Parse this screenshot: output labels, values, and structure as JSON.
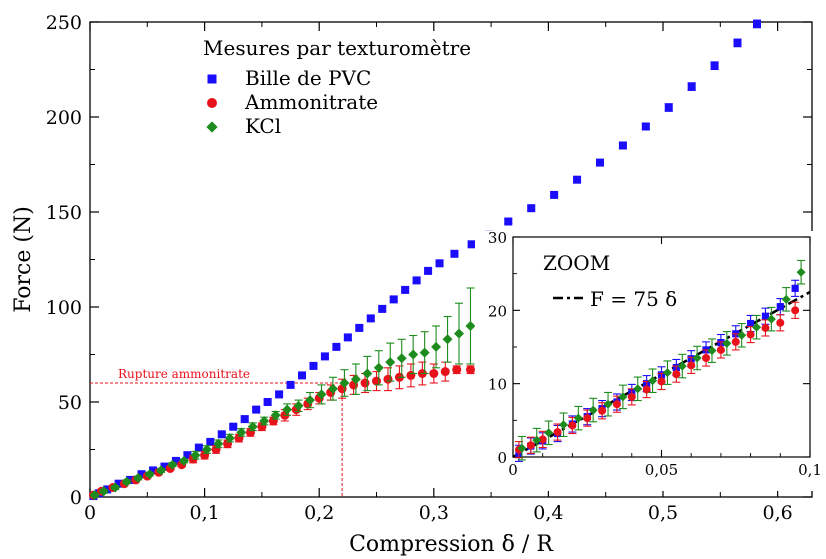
{
  "chart_data": [
    {
      "type": "scatter",
      "xlabel": "Compression δ / R",
      "ylabel": "Force (N)",
      "xlim": [
        0,
        0.63
      ],
      "ylim": [
        0,
        250
      ],
      "xticks": [
        "0",
        "0,1",
        "0,2",
        "0,3",
        "0,4",
        "0,5",
        "0,6"
      ],
      "yticks": [
        "0",
        "50",
        "100",
        "150",
        "200",
        "250"
      ],
      "legend_title": "Mesures par texturomètre",
      "legend_position": "top-left",
      "annotation": {
        "text": "Rupture ammonitrate",
        "x": 0.22,
        "y": 60
      },
      "series": [
        {
          "name": "Bille de PVC",
          "color": "#1a0dfb",
          "marker": "square",
          "points": [
            [
              0.003,
              0.5,
              1
            ],
            [
              0.008,
              2,
              1
            ],
            [
              0.015,
              4,
              1
            ],
            [
              0.025,
              7,
              1
            ],
            [
              0.035,
              9,
              1
            ],
            [
              0.045,
              12,
              1
            ],
            [
              0.055,
              14,
              1
            ],
            [
              0.065,
              16,
              1
            ],
            [
              0.075,
              19,
              1
            ],
            [
              0.085,
              22,
              1
            ],
            [
              0.095,
              26,
              1
            ],
            [
              0.105,
              29,
              1
            ],
            [
              0.115,
              33,
              1
            ],
            [
              0.125,
              37,
              1
            ],
            [
              0.135,
              41,
              1
            ],
            [
              0.145,
              46,
              1
            ],
            [
              0.155,
              50,
              1
            ],
            [
              0.165,
              54,
              1
            ],
            [
              0.175,
              59,
              1
            ],
            [
              0.185,
              64,
              1
            ],
            [
              0.195,
              69,
              1
            ],
            [
              0.205,
              74,
              1
            ],
            [
              0.215,
              79,
              1
            ],
            [
              0.225,
              84,
              1
            ],
            [
              0.235,
              89,
              1
            ],
            [
              0.245,
              94,
              1
            ],
            [
              0.255,
              99,
              1
            ],
            [
              0.265,
              104,
              1
            ],
            [
              0.275,
              109,
              1
            ],
            [
              0.285,
              114,
              1
            ],
            [
              0.295,
              119,
              1
            ],
            [
              0.305,
              123,
              1
            ],
            [
              0.318,
              128,
              1
            ],
            [
              0.333,
              133,
              1
            ],
            [
              0.348,
              138,
              1
            ],
            [
              0.365,
              145,
              1
            ],
            [
              0.385,
              152,
              1
            ],
            [
              0.405,
              159,
              1
            ],
            [
              0.425,
              167,
              1
            ],
            [
              0.445,
              176,
              1.5
            ],
            [
              0.465,
              185,
              1.5
            ],
            [
              0.485,
              195,
              1.5
            ],
            [
              0.505,
              205,
              2
            ],
            [
              0.525,
              216,
              2
            ],
            [
              0.545,
              227,
              2
            ],
            [
              0.565,
              239,
              2
            ],
            [
              0.582,
              249,
              2
            ]
          ]
        },
        {
          "name": "Ammonitrate",
          "color": "#e8121b",
          "marker": "circle",
          "points": [
            [
              0.003,
              1,
              1
            ],
            [
              0.01,
              3,
              1
            ],
            [
              0.02,
              5,
              1
            ],
            [
              0.03,
              7,
              1
            ],
            [
              0.04,
              9,
              1
            ],
            [
              0.05,
              11,
              1
            ],
            [
              0.06,
              13,
              1
            ],
            [
              0.07,
              15,
              1
            ],
            [
              0.08,
              17,
              1
            ],
            [
              0.09,
              20,
              2
            ],
            [
              0.1,
              22,
              2
            ],
            [
              0.11,
              25,
              2
            ],
            [
              0.12,
              28,
              2
            ],
            [
              0.13,
              31,
              2
            ],
            [
              0.14,
              34,
              2
            ],
            [
              0.15,
              37,
              2
            ],
            [
              0.16,
              40,
              2
            ],
            [
              0.17,
              43,
              3
            ],
            [
              0.18,
              46,
              3
            ],
            [
              0.19,
              49,
              3
            ],
            [
              0.2,
              52,
              3
            ],
            [
              0.21,
              55,
              4
            ],
            [
              0.22,
              57,
              5
            ],
            [
              0.23,
              59,
              5
            ],
            [
              0.24,
              60,
              5
            ],
            [
              0.25,
              61,
              5
            ],
            [
              0.26,
              62,
              6
            ],
            [
              0.27,
              63,
              6
            ],
            [
              0.28,
              64,
              6
            ],
            [
              0.29,
              65,
              6
            ],
            [
              0.3,
              65,
              5
            ],
            [
              0.31,
              66,
              5
            ],
            [
              0.32,
              67,
              2
            ],
            [
              0.332,
              67,
              2
            ]
          ]
        },
        {
          "name": "KCl",
          "color": "#1d8c1d",
          "marker": "diamond",
          "points": [
            [
              0.004,
              1,
              1
            ],
            [
              0.012,
              3,
              1
            ],
            [
              0.022,
              5,
              1
            ],
            [
              0.032,
              8,
              1
            ],
            [
              0.042,
              10,
              1
            ],
            [
              0.052,
              12,
              1
            ],
            [
              0.062,
              14,
              1
            ],
            [
              0.072,
              17,
              1
            ],
            [
              0.082,
              19,
              1
            ],
            [
              0.092,
              22,
              2
            ],
            [
              0.102,
              25,
              2
            ],
            [
              0.112,
              28,
              2
            ],
            [
              0.122,
              31,
              2
            ],
            [
              0.132,
              34,
              2
            ],
            [
              0.142,
              37,
              2
            ],
            [
              0.152,
              40,
              2
            ],
            [
              0.162,
              43,
              2
            ],
            [
              0.172,
              46,
              3
            ],
            [
              0.182,
              48,
              3
            ],
            [
              0.192,
              51,
              4
            ],
            [
              0.202,
              54,
              5
            ],
            [
              0.212,
              57,
              6
            ],
            [
              0.222,
              60,
              7
            ],
            [
              0.232,
              62,
              8
            ],
            [
              0.242,
              65,
              9
            ],
            [
              0.252,
              68,
              9
            ],
            [
              0.262,
              71,
              10
            ],
            [
              0.272,
              73,
              10
            ],
            [
              0.282,
              75,
              10
            ],
            [
              0.292,
              76,
              11
            ],
            [
              0.302,
              79,
              11
            ],
            [
              0.312,
              83,
              12
            ],
            [
              0.322,
              86,
              16
            ],
            [
              0.332,
              90,
              20
            ]
          ]
        }
      ]
    },
    {
      "type": "scatter",
      "title": "ZOOM",
      "xlim": [
        0,
        0.1
      ],
      "ylim": [
        0,
        30
      ],
      "xticks": [
        "0",
        "0,05",
        "0,1"
      ],
      "yticks": [
        "0",
        "10",
        "20",
        "30"
      ],
      "legend_position": "top-left",
      "series": [
        {
          "name": "F = 75 δ",
          "color": "#000000",
          "line_style": "dash-dot",
          "points": [
            [
              0,
              0
            ],
            [
              0.1,
              22.5
            ]
          ]
        },
        {
          "name": "Bille de PVC",
          "color": "#1a0dfb",
          "marker": "square",
          "points": [
            [
              0.002,
              0.5
            ],
            [
              0.006,
              1.5
            ],
            [
              0.01,
              2.2
            ],
            [
              0.015,
              3.2
            ],
            [
              0.02,
              4.5
            ],
            [
              0.025,
              5.5
            ],
            [
              0.03,
              6.6
            ],
            [
              0.035,
              7.5
            ],
            [
              0.04,
              8.8
            ],
            [
              0.045,
              10
            ],
            [
              0.05,
              11.2
            ],
            [
              0.055,
              12.2
            ],
            [
              0.06,
              13.4
            ],
            [
              0.065,
              14.6
            ],
            [
              0.07,
              15.6
            ],
            [
              0.075,
              16.8
            ],
            [
              0.08,
              18.2
            ],
            [
              0.085,
              19.2
            ],
            [
              0.09,
              20.5
            ],
            [
              0.095,
              23
            ]
          ]
        },
        {
          "name": "Ammonitrate",
          "color": "#e8121b",
          "marker": "circle",
          "points": [
            [
              0.002,
              1
            ],
            [
              0.006,
              1.6
            ],
            [
              0.01,
              2.4
            ],
            [
              0.015,
              3.4
            ],
            [
              0.02,
              4.3
            ],
            [
              0.025,
              5.3
            ],
            [
              0.03,
              6.3
            ],
            [
              0.035,
              7.2
            ],
            [
              0.04,
              8.2
            ],
            [
              0.045,
              9.2
            ],
            [
              0.05,
              10.3
            ],
            [
              0.055,
              11.3
            ],
            [
              0.06,
              12.5
            ],
            [
              0.065,
              13.5
            ],
            [
              0.07,
              14.6
            ],
            [
              0.075,
              15.7
            ],
            [
              0.08,
              16.7
            ],
            [
              0.085,
              17.6
            ],
            [
              0.09,
              18.3
            ],
            [
              0.095,
              20
            ]
          ]
        },
        {
          "name": "KCl",
          "color": "#1d8c1d",
          "marker": "diamond",
          "points": [
            [
              0.003,
              1.2
            ],
            [
              0.008,
              2.3
            ],
            [
              0.012,
              3.3
            ],
            [
              0.017,
              4.4
            ],
            [
              0.022,
              5.3
            ],
            [
              0.027,
              6.4
            ],
            [
              0.032,
              7.2
            ],
            [
              0.037,
              8.2
            ],
            [
              0.042,
              9.3
            ],
            [
              0.047,
              10.4
            ],
            [
              0.052,
              11.5
            ],
            [
              0.057,
              12.4
            ],
            [
              0.062,
              13.5
            ],
            [
              0.067,
              14.5
            ],
            [
              0.072,
              15.5
            ],
            [
              0.077,
              16.6
            ],
            [
              0.082,
              17.7
            ],
            [
              0.087,
              18.8
            ],
            [
              0.092,
              21.5
            ],
            [
              0.097,
              25.2
            ]
          ]
        }
      ]
    }
  ]
}
